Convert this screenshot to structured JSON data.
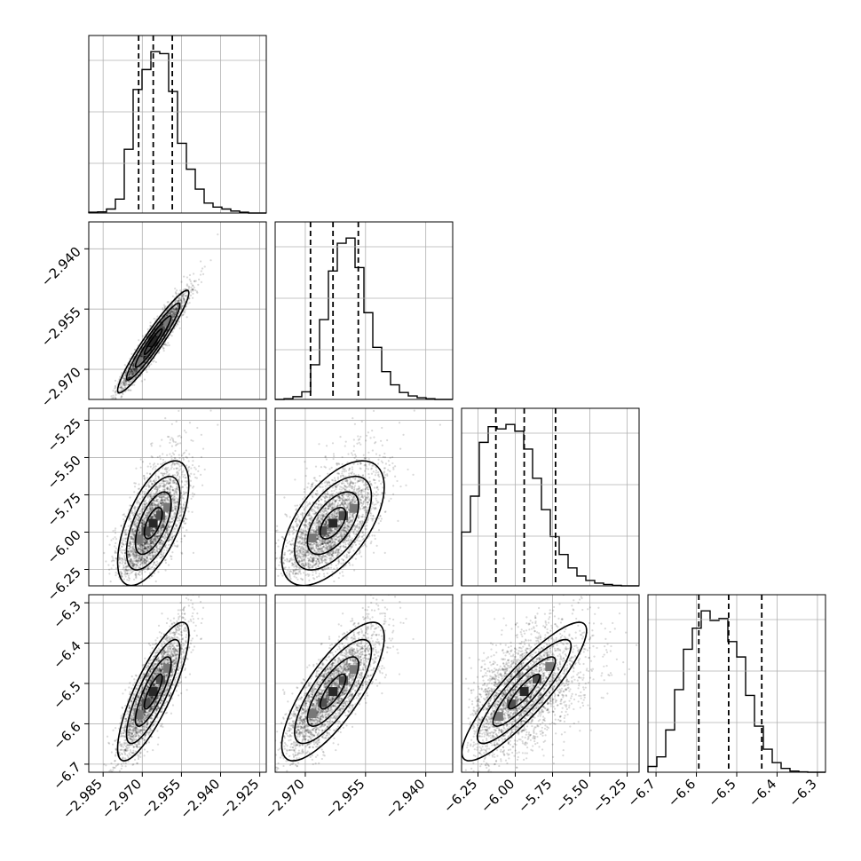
{
  "chart_data": {
    "type": "corner",
    "grid": true,
    "parameters": [
      {
        "range": [
          -2.9905,
          -2.9225
        ],
        "ticks": [
          -2.985,
          -2.97,
          -2.955,
          -2.94,
          -2.925
        ],
        "tick_labels": [
          "−2.985",
          "−2.970",
          "−2.955",
          "−2.940",
          "−2.925"
        ],
        "median": -2.9658,
        "q16": -2.9714,
        "q84": -2.9585,
        "sigma": 0.0062
      },
      {
        "range": [
          -2.9775,
          -2.9333
        ],
        "ticks": [
          -2.97,
          -2.955,
          -2.94
        ],
        "tick_labels": [
          "−2.970",
          "−2.955",
          "−2.940"
        ],
        "median": -2.9631,
        "q16": -2.9687,
        "q84": -2.9568,
        "sigma": 0.0058
      },
      {
        "range": [
          -6.36,
          -5.17
        ],
        "ticks": [
          -6.25,
          -6.0,
          -5.75,
          -5.5,
          -5.25
        ],
        "tick_labels": [
          "−6.25",
          "−6.00",
          "−5.75",
          "−5.50",
          "−5.25"
        ],
        "median": -5.94,
        "q16": -6.13,
        "q84": -5.73,
        "sigma": 0.19
      },
      {
        "range": [
          -6.72,
          -6.28
        ],
        "ticks": [
          -6.7,
          -6.6,
          -6.5,
          -6.4,
          -6.3
        ],
        "tick_labels": [
          "−6.7",
          "−6.6",
          "−6.5",
          "−6.4",
          "−6.3"
        ],
        "median": -6.52,
        "q16": -6.594,
        "q84": -6.438,
        "sigma": 0.078
      }
    ],
    "hist_counts": [
      [
        2,
        3,
        10,
        35,
        160,
        310,
        360,
        405,
        400,
        305,
        175,
        110,
        60,
        25,
        15,
        10,
        5,
        2,
        0,
        0
      ],
      [
        0,
        2,
        8,
        22,
        100,
        230,
        370,
        450,
        465,
        380,
        250,
        150,
        80,
        42,
        20,
        10,
        5,
        2,
        0,
        0
      ],
      [
        120,
        200,
        320,
        355,
        350,
        360,
        345,
        305,
        240,
        170,
        110,
        70,
        40,
        22,
        12,
        6,
        3,
        1,
        0,
        0
      ],
      [
        15,
        40,
        110,
        215,
        320,
        375,
        420,
        395,
        400,
        340,
        300,
        200,
        120,
        60,
        25,
        10,
        3,
        1,
        0,
        0
      ]
    ],
    "correlations": [
      [
        1,
        0.95,
        0.62,
        0.82
      ],
      [
        0.95,
        1,
        0.58,
        0.78
      ],
      [
        0.62,
        0.58,
        1,
        0.88
      ],
      [
        0.82,
        0.78,
        0.88,
        1
      ]
    ]
  }
}
